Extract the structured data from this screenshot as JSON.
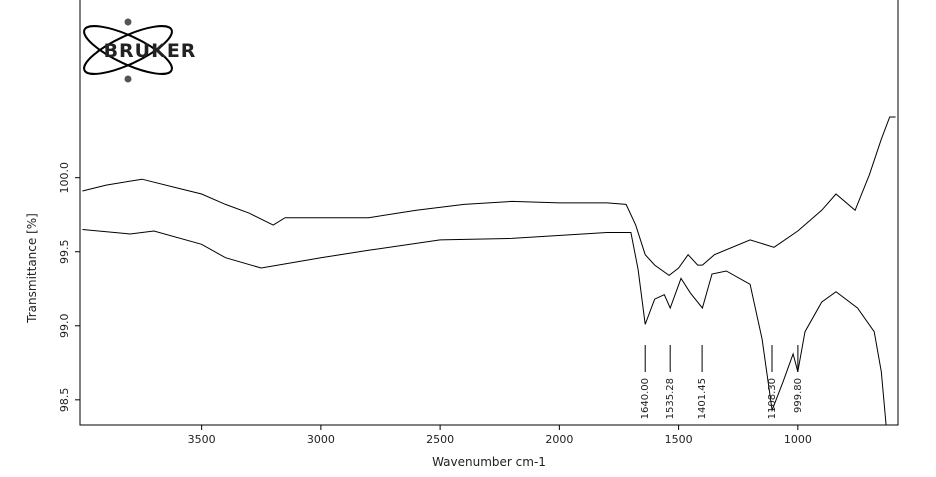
{
  "logo": "BRUKER",
  "chart_data": {
    "type": "line",
    "x_label": "Wavenumber cm-1",
    "y_label": "Transmittance [%]",
    "xlim": [
      4010,
      580
    ],
    "ylim": [
      98.33,
      101.2
    ],
    "xticks": [
      3500,
      3000,
      2500,
      2000,
      1500,
      1000
    ],
    "yticks": [
      {
        "value": 100,
        "label": "100.0"
      },
      {
        "value": 99.5,
        "label": "99.5"
      },
      {
        "value": 99,
        "label": "99.0"
      },
      {
        "value": 98.5,
        "label": "98.5"
      }
    ],
    "series": [
      {
        "color": "#000000",
        "x": [
          4000,
          3900,
          3750,
          3600,
          3500,
          3400,
          3300,
          3200,
          3150,
          3000,
          2800,
          2600,
          2400,
          2200,
          2000,
          1800,
          1720,
          1680,
          1640,
          1600,
          1540,
          1500,
          1460,
          1420,
          1400,
          1350,
          1200,
          1100,
          1000,
          900,
          840,
          760,
          700,
          650,
          615,
          590
        ],
        "values": [
          99.91,
          99.95,
          99.99,
          99.93,
          99.89,
          99.82,
          99.76,
          99.68,
          99.73,
          99.73,
          99.73,
          99.78,
          99.82,
          99.84,
          99.83,
          99.83,
          99.82,
          99.68,
          99.48,
          99.41,
          99.34,
          99.39,
          99.48,
          99.41,
          99.41,
          99.48,
          99.58,
          99.53,
          99.64,
          99.78,
          99.89,
          99.78,
          100.02,
          100.26,
          100.41,
          100.41
        ]
      },
      {
        "color": "#000000",
        "x": [
          4000,
          3800,
          3700,
          3500,
          3400,
          3250,
          3000,
          2800,
          2500,
          2200,
          1800,
          1700,
          1670,
          1640,
          1600,
          1560,
          1535,
          1490,
          1450,
          1400,
          1360,
          1300,
          1200,
          1150,
          1108,
          1060,
          1020,
          1000,
          970,
          900,
          840,
          750,
          680,
          650,
          630
        ],
        "values": [
          99.65,
          99.62,
          99.64,
          99.55,
          99.46,
          99.39,
          99.46,
          99.51,
          99.58,
          99.59,
          99.63,
          99.63,
          99.38,
          99.01,
          99.18,
          99.21,
          99.12,
          99.32,
          99.22,
          99.12,
          99.35,
          99.37,
          99.28,
          98.91,
          98.43,
          98.63,
          98.81,
          98.69,
          98.96,
          99.16,
          99.23,
          99.12,
          98.96,
          98.69,
          98.33
        ]
      }
    ],
    "peak_labels": [
      {
        "value": 1640,
        "label": "1640.00"
      },
      {
        "value": 1535.28,
        "label": "1535.28"
      },
      {
        "value": 1401.45,
        "label": "1401.45"
      },
      {
        "value": 1108.3,
        "label": "1108.30"
      },
      {
        "value": 999.8,
        "label": "999.80"
      }
    ]
  }
}
